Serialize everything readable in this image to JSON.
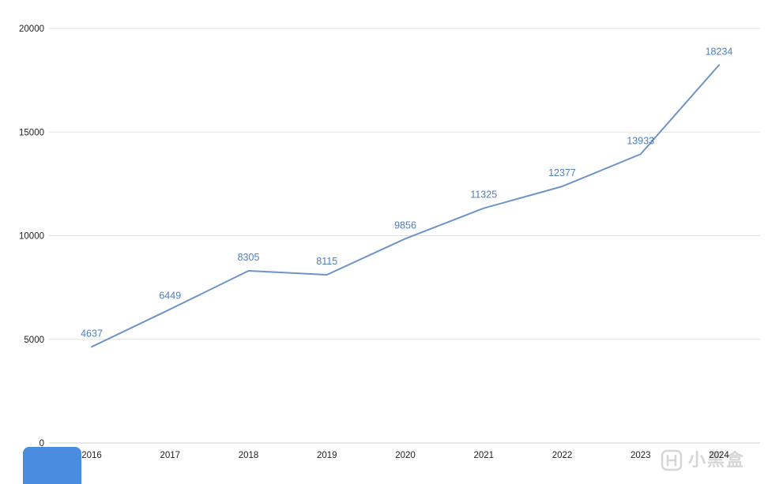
{
  "chart_data": {
    "type": "line",
    "x": [
      "2016",
      "2017",
      "2018",
      "2019",
      "2020",
      "2021",
      "2022",
      "2023",
      "2024"
    ],
    "values": [
      4637,
      6449,
      8305,
      8115,
      9856,
      11325,
      12377,
      13933,
      18234
    ],
    "title": "",
    "xlabel": "",
    "ylabel": "",
    "ylim": [
      0,
      20000
    ],
    "yticks": [
      0,
      5000,
      10000,
      15000,
      20000
    ],
    "grid": true,
    "legend_position": "none",
    "line_color": "#6e93c6",
    "data_label_color": "#4d7ebf",
    "axis_text_color": "#212121",
    "grid_color": "#e2e2e2",
    "axis_line_color": "#cfcfcf"
  },
  "watermark": {
    "text": "小黑盒",
    "icon": "heybox-logo-icon",
    "color": "#d6d6d6"
  },
  "misc": {
    "bottom_left_widget_color": "#4a8ce0"
  }
}
